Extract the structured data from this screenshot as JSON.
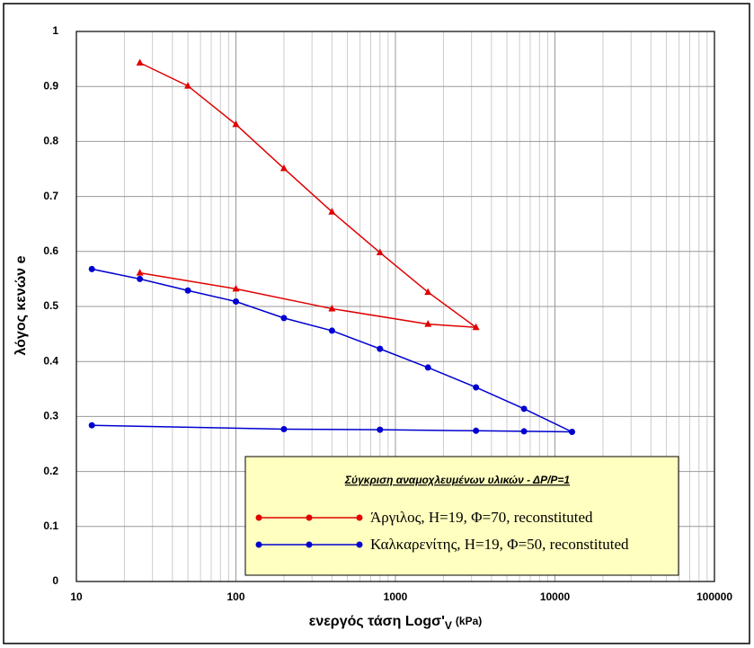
{
  "chart_data": {
    "type": "line",
    "x_label": "ενεργός τάση Logσ'",
    "x_label_sub": "V",
    "x_label_unit": "(kPa)",
    "y_label": "λόγος κενών e",
    "x_scale": "log",
    "xlim": [
      10,
      100000
    ],
    "xticks": [
      10,
      100,
      1000,
      10000,
      100000
    ],
    "ylim": [
      0,
      1
    ],
    "yticks": [
      0,
      0.1,
      0.2,
      0.3,
      0.4,
      0.5,
      0.6,
      0.7,
      0.8,
      0.9,
      1
    ],
    "grid": true,
    "minor_grid": true,
    "legend": "lower right",
    "legend_title": "Σύγκριση αναμοχλευμένων υλικών - ΔP/P=1",
    "series": [
      {
        "name": "Άργιλος, Η=19, Φ=70, reconstituted",
        "color": "#e00000",
        "marker": "triangle",
        "x": [
          25,
          50,
          100,
          200,
          400,
          800,
          1600,
          3200,
          1600,
          400,
          100,
          25
        ],
        "values": [
          0.943,
          0.901,
          0.831,
          0.751,
          0.672,
          0.598,
          0.526,
          0.462,
          0.468,
          0.496,
          0.532,
          0.561
        ]
      },
      {
        "name": "Καλκαρενίτης, Η=19, Φ=50, reconstituted",
        "color": "#0000d0",
        "marker": "circle",
        "x": [
          12.5,
          25,
          50,
          100,
          200,
          400,
          800,
          1600,
          3200,
          6400,
          12800,
          6400,
          3200,
          800,
          200,
          12.5
        ],
        "values": [
          0.568,
          0.55,
          0.529,
          0.509,
          0.479,
          0.456,
          0.423,
          0.389,
          0.353,
          0.314,
          0.272,
          0.273,
          0.274,
          0.276,
          0.277,
          0.284
        ]
      }
    ]
  }
}
